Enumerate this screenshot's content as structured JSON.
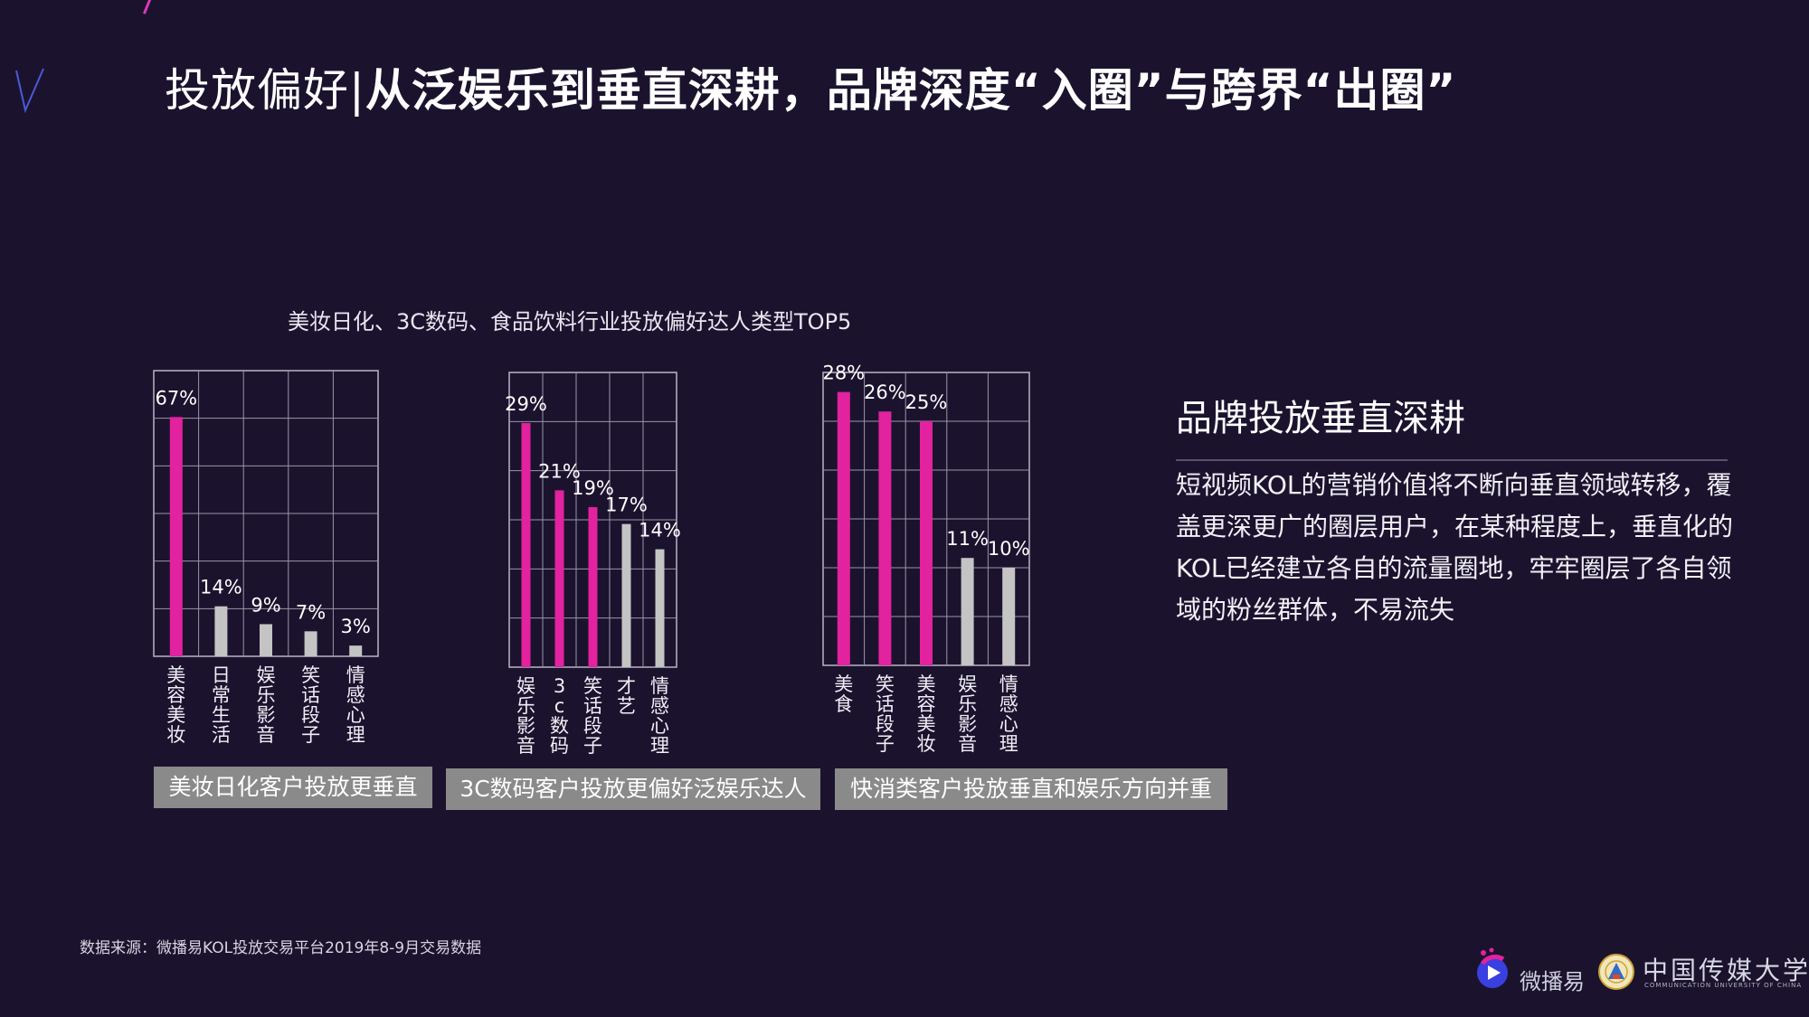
{
  "header": {
    "title_light": "投放偏好|",
    "title_bold": "从泛娱乐到垂直深耕，品牌深度“入圈”与跨界“出圈”"
  },
  "colors": {
    "accent": "#e2229f",
    "neutral": "#c4c4c4",
    "background": "#1b132e",
    "caption_bg": "#8a8a8a"
  },
  "chart_section": {
    "title": "美妆日化、3C数码、食品饮料行业投放偏好达人类型TOP5"
  },
  "chart_data": [
    {
      "type": "bar",
      "categories": [
        "美容美妆",
        "日常生活",
        "娱乐影音",
        "笑话段子",
        "情感心理"
      ],
      "values": [
        67,
        14,
        9,
        7,
        3
      ],
      "labels": [
        "67%",
        "14%",
        "9%",
        "7%",
        "3%"
      ],
      "highlight_count": 1,
      "caption": "美妆日化客户投放更垂直",
      "ylim": [
        0,
        80
      ],
      "grid": true
    },
    {
      "type": "bar",
      "categories": [
        "娱乐影音",
        "3c数码",
        "笑话段子",
        "才艺",
        "情感心理"
      ],
      "values": [
        29,
        21,
        19,
        17,
        14
      ],
      "labels": [
        "29%",
        "21%",
        "19%",
        "17%",
        "14%"
      ],
      "highlight_count": 3,
      "caption": "3C数码客户投放更偏好泛娱乐达人",
      "ylim": [
        0,
        35
      ],
      "grid": true
    },
    {
      "type": "bar",
      "categories": [
        "美食",
        "笑话段子",
        "美容美妆",
        "娱乐影音",
        "情感心理"
      ],
      "values": [
        28,
        26,
        25,
        11,
        10
      ],
      "labels": [
        "28%",
        "26%",
        "25%",
        "11%",
        "10%"
      ],
      "highlight_count": 3,
      "caption": "快消类客户投放垂直和娱乐方向并重",
      "ylim": [
        0,
        30
      ],
      "grid": true
    }
  ],
  "side": {
    "title": "品牌投放垂直深耕",
    "body": "短视频KOL的营销价值将不断向垂直领域转移，覆盖更深更广的圈层用户，在某种程度上，垂直化的KOL已经建立各自的流量圈地，牢牢圈层了各自领域的粉丝群体，不易流失"
  },
  "footer": {
    "source": "数据来源：微播易KOL投放交易平台2019年8-9月交易数据",
    "logo_weiboyi": "微播易",
    "logo_cuc": "中国传媒大学",
    "logo_cuc_en": "COMMUNICATION UNIVERSITY OF CHINA"
  }
}
